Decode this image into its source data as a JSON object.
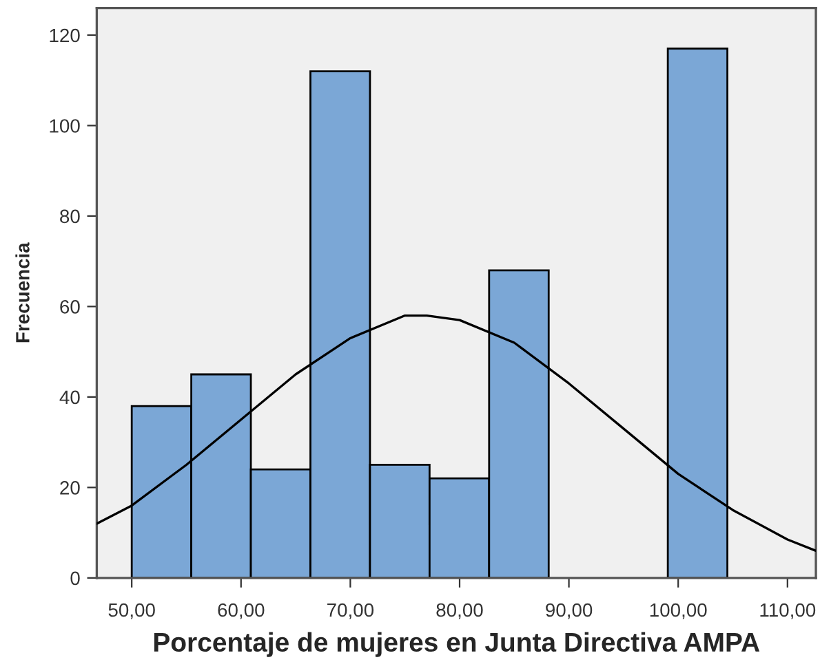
{
  "chart_data": {
    "type": "histogram",
    "xlabel": "Porcentaje de mujeres en Junta Directiva AMPA",
    "ylabel": "Frecuencia",
    "series": [
      {
        "color": "#7ba7d6",
        "bins": [
          50,
          55.45,
          60.9,
          66.35,
          71.8,
          77.25,
          82.7,
          88.15,
          93.6,
          99.05,
          104.5
        ],
        "values": [
          38,
          45,
          24,
          112,
          25,
          22,
          68,
          0,
          0,
          117
        ]
      },
      {
        "type": "line",
        "color": "#000000",
        "x": [
          46.8,
          50,
          55,
          60,
          65,
          70,
          75,
          77,
          80,
          85,
          90,
          95,
          100,
          105,
          110,
          112.6
        ],
        "values": [
          12,
          16,
          25,
          35,
          45,
          53,
          58,
          58,
          57,
          52,
          43,
          33,
          23,
          15,
          8.5,
          6
        ]
      }
    ],
    "xlim": [
      46.8,
      112.6
    ],
    "xticks": [
      {
        "value": 50,
        "label": "50,00"
      },
      {
        "value": 60,
        "label": "60,00"
      },
      {
        "value": 70,
        "label": "70,00"
      },
      {
        "value": 80,
        "label": "80,00"
      },
      {
        "value": 90,
        "label": "90,00"
      },
      {
        "value": 100,
        "label": "100,00"
      },
      {
        "value": 110,
        "label": "110,00"
      }
    ],
    "ylim": [
      0,
      126
    ],
    "yticks": [
      0,
      20,
      40,
      60,
      80,
      100,
      120
    ],
    "grid": false,
    "legend": false
  }
}
